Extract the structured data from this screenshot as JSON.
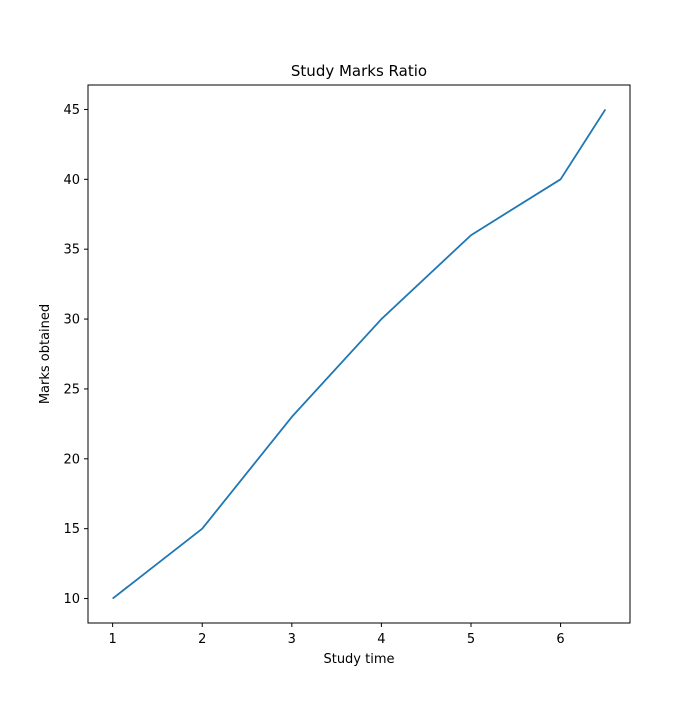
{
  "chart_data": {
    "type": "line",
    "title": "Study Marks Ratio",
    "xlabel": "Study time",
    "ylabel": "Marks obtained",
    "series": [
      {
        "x": [
          1,
          2,
          3,
          4,
          5,
          6,
          6.5
        ],
        "y": [
          10,
          15,
          23,
          30,
          36,
          40,
          45
        ],
        "color": "#1f77b4"
      }
    ],
    "xlim": [
      0.725,
      6.775
    ],
    "ylim": [
      8.25,
      46.75
    ],
    "xticks": [
      1,
      2,
      3,
      4,
      5,
      6
    ],
    "yticks": [
      10,
      15,
      20,
      25,
      30,
      35,
      40,
      45
    ],
    "grid": false,
    "legend": "none"
  }
}
